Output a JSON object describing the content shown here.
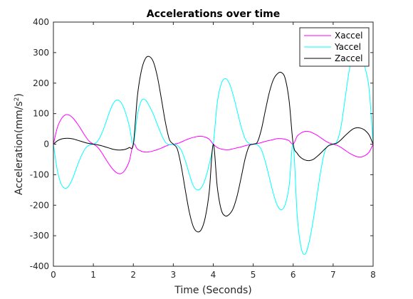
{
  "chart_data": {
    "type": "line",
    "title": "Accelerations over time",
    "xlabel": "Time (Seconds)",
    "ylabel_main": "Acceleration(mm/s",
    "ylabel_sup": "2",
    "ylabel_close": ")",
    "xlim": [
      0,
      8
    ],
    "ylim": [
      -400,
      400
    ],
    "xticks": [
      0,
      1,
      2,
      3,
      4,
      5,
      6,
      7,
      8
    ],
    "yticks": [
      -400,
      -300,
      -200,
      -100,
      0,
      100,
      200,
      300,
      400
    ],
    "grid": false,
    "legend_position": "top-right",
    "x": [
      0,
      0.1,
      0.2,
      0.3,
      0.4,
      0.5,
      0.6,
      0.7,
      0.8,
      0.9,
      1.0,
      1.1,
      1.2,
      1.3,
      1.4,
      1.5,
      1.6,
      1.7,
      1.8,
      1.9,
      2.0,
      2.1,
      2.2,
      2.3,
      2.4,
      2.5,
      2.6,
      2.7,
      2.8,
      2.9,
      3.0,
      3.1,
      3.2,
      3.3,
      3.4,
      3.5,
      3.6,
      3.7,
      3.8,
      3.9,
      4.0,
      4.1,
      4.2,
      4.3,
      4.4,
      4.5,
      4.6,
      4.7,
      4.8,
      4.9,
      5.0,
      5.1,
      5.2,
      5.3,
      5.4,
      5.5,
      5.6,
      5.7,
      5.8,
      5.9,
      6.0,
      6.1,
      6.2,
      6.3,
      6.4,
      6.5,
      6.6,
      6.7,
      6.8,
      6.9,
      7.0,
      7.1,
      7.2,
      7.3,
      7.4,
      7.5,
      7.6,
      7.7,
      7.8,
      7.9,
      8.0
    ],
    "series": [
      {
        "name": "Xaccel",
        "color": "#ff00ff",
        "values": [
          0,
          55,
          83,
          96,
          95,
          84,
          67,
          47,
          26,
          9,
          0,
          -9,
          -26,
          -47,
          -67,
          -84,
          -95,
          -96,
          -83,
          -55,
          0,
          -16,
          -23,
          -26,
          -25,
          -22,
          -18,
          -13,
          -7,
          -2,
          0,
          2,
          7,
          13,
          18,
          22,
          25,
          26,
          23,
          16,
          0,
          -11,
          -16,
          -18,
          -18,
          -15,
          -12,
          -9,
          -5,
          -2,
          0,
          2,
          5,
          9,
          12,
          15,
          18,
          18,
          16,
          11,
          0,
          26,
          37,
          42,
          41,
          36,
          29,
          20,
          11,
          4,
          0,
          -4,
          -11,
          -20,
          -29,
          -36,
          -41,
          -42,
          -37,
          -26,
          0
        ]
      },
      {
        "name": "Yaccel",
        "color": "#00ffff",
        "values": [
          0,
          -87,
          -132,
          -145,
          -134,
          -106,
          -70,
          -38,
          -14,
          -3,
          0,
          9,
          32,
          66,
          104,
          134,
          145,
          135,
          105,
          59,
          0,
          94,
          142,
          145,
          125,
          98,
          65,
          32,
          7,
          -2,
          0,
          -4,
          -20,
          -54,
          -98,
          -136,
          -150,
          -143,
          -114,
          -65,
          0,
          135,
          198,
          215,
          200,
          160,
          108,
          56,
          17,
          2,
          0,
          -2,
          -17,
          -56,
          -108,
          -160,
          -200,
          -215,
          -198,
          -135,
          0,
          -233,
          -340,
          -360,
          -320,
          -250,
          -165,
          -80,
          -20,
          -3,
          0,
          10,
          60,
          150,
          240,
          300,
          320,
          300,
          250,
          180,
          0
        ]
      },
      {
        "name": "Zaccel",
        "color": "#000000",
        "values": [
          0,
          11,
          17,
          19,
          19,
          17,
          13,
          9,
          5,
          2,
          0,
          -2,
          -5,
          -9,
          -13,
          -17,
          -19,
          -19,
          -17,
          -11,
          0,
          155,
          240,
          280,
          287,
          270,
          222,
          150,
          73,
          16,
          0,
          -16,
          -73,
          -150,
          -222,
          -270,
          -287,
          -280,
          -240,
          -155,
          0,
          -140,
          -215,
          -235,
          -230,
          -210,
          -168,
          -108,
          -46,
          -6,
          0,
          6,
          46,
          108,
          168,
          210,
          230,
          235,
          215,
          140,
          0,
          -30,
          -45,
          -52,
          -54,
          -50,
          -40,
          -28,
          -15,
          -4,
          0,
          4,
          15,
          28,
          40,
          50,
          54,
          52,
          45,
          30,
          0
        ]
      }
    ]
  }
}
